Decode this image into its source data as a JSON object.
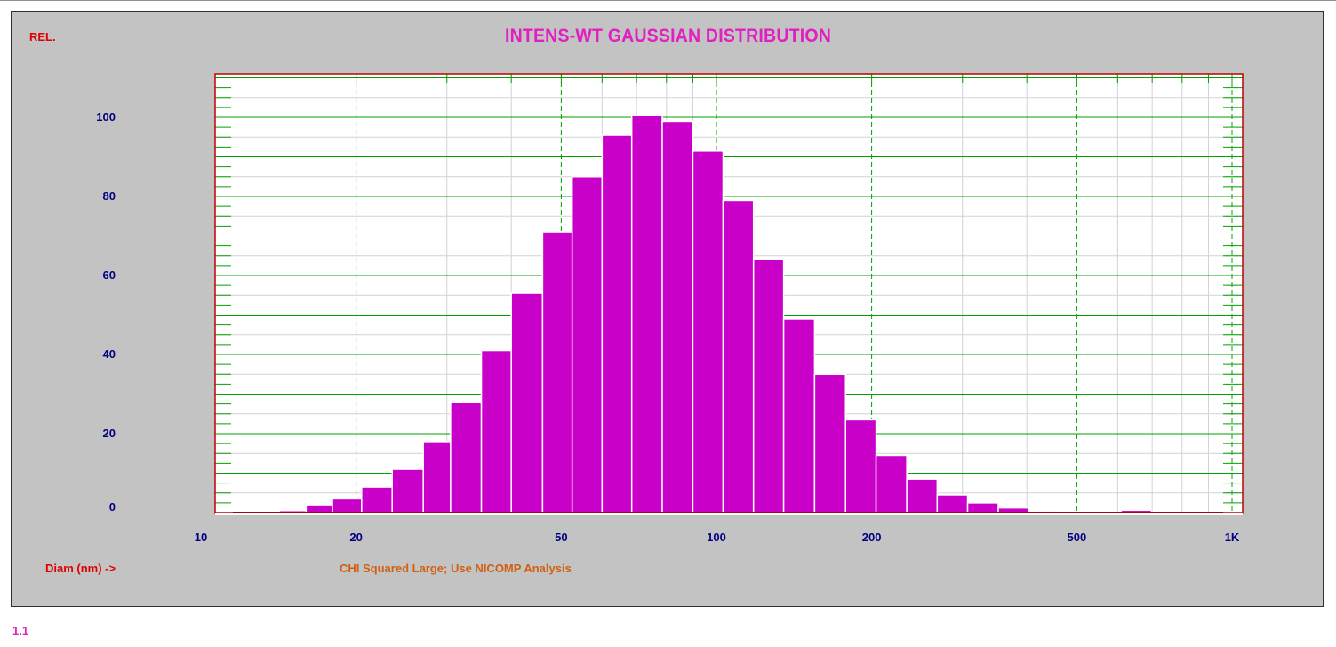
{
  "header": {
    "y_unit_label": "REL.",
    "title": "INTENS-WT GAUSSIAN DISTRIBUTION"
  },
  "footer": {
    "x_axis_label": "Diam (nm) ->",
    "message": "CHI Squared Large; Use NICOMP Analysis",
    "version": "1.1"
  },
  "colors": {
    "panel": "#c3c3c3",
    "bar": "#c800c8",
    "grid_major": "#00a000",
    "grid_minor": "#d2d2d2",
    "frame": "#c00000",
    "tick_text": "#000080",
    "title": "#e020c0"
  },
  "chart_data": {
    "type": "bar",
    "title": "INTENS-WT GAUSSIAN DISTRIBUTION",
    "xlabel": "Diam (nm) ->",
    "ylabel": "REL.",
    "x_scale": "log",
    "xlim": [
      10,
      1100
    ],
    "ylim": [
      0,
      110
    ],
    "grid": true,
    "x_ticks": [
      {
        "value": 10,
        "label": "10"
      },
      {
        "value": 20,
        "label": "20"
      },
      {
        "value": 50,
        "label": "50"
      },
      {
        "value": 100,
        "label": "100"
      },
      {
        "value": 200,
        "label": "200"
      },
      {
        "value": 500,
        "label": "500"
      },
      {
        "value": 1000,
        "label": "1K"
      }
    ],
    "y_ticks": [
      0,
      20,
      40,
      60,
      80,
      100
    ],
    "bins": [
      {
        "x0": 14.2,
        "x1": 16.0,
        "value": 0.5
      },
      {
        "x0": 16.0,
        "x1": 18.0,
        "value": 2
      },
      {
        "x0": 18.0,
        "x1": 20.5,
        "value": 3.5
      },
      {
        "x0": 20.5,
        "x1": 23.5,
        "value": 6.5
      },
      {
        "x0": 23.5,
        "x1": 27.0,
        "value": 11
      },
      {
        "x0": 27.0,
        "x1": 30.5,
        "value": 18
      },
      {
        "x0": 30.5,
        "x1": 35.0,
        "value": 28
      },
      {
        "x0": 35.0,
        "x1": 40.0,
        "value": 41
      },
      {
        "x0": 40.0,
        "x1": 46.0,
        "value": 55.5
      },
      {
        "x0": 46.0,
        "x1": 52.5,
        "value": 71
      },
      {
        "x0": 52.5,
        "x1": 60.0,
        "value": 85
      },
      {
        "x0": 60.0,
        "x1": 68.5,
        "value": 95.5
      },
      {
        "x0": 68.5,
        "x1": 78.5,
        "value": 100.5
      },
      {
        "x0": 78.5,
        "x1": 90.0,
        "value": 99
      },
      {
        "x0": 90.0,
        "x1": 103.0,
        "value": 91.5
      },
      {
        "x0": 103.0,
        "x1": 118.0,
        "value": 79
      },
      {
        "x0": 118.0,
        "x1": 135.0,
        "value": 64
      },
      {
        "x0": 135.0,
        "x1": 155.0,
        "value": 49
      },
      {
        "x0": 155.0,
        "x1": 178.0,
        "value": 35
      },
      {
        "x0": 178.0,
        "x1": 204.0,
        "value": 23.5
      },
      {
        "x0": 204.0,
        "x1": 234.0,
        "value": 14.5
      },
      {
        "x0": 234.0,
        "x1": 268.0,
        "value": 8.5
      },
      {
        "x0": 268.0,
        "x1": 307.0,
        "value": 4.5
      },
      {
        "x0": 307.0,
        "x1": 352.0,
        "value": 2.5
      },
      {
        "x0": 352.0,
        "x1": 404.0,
        "value": 1.2
      },
      {
        "x0": 404.0,
        "x1": 463.0,
        "value": 0.4
      },
      {
        "x0": 463.0,
        "x1": 531.0,
        "value": 0
      },
      {
        "x0": 531.0,
        "x1": 609.0,
        "value": 0
      },
      {
        "x0": 609.0,
        "x1": 698.0,
        "value": 0.6
      }
    ]
  }
}
